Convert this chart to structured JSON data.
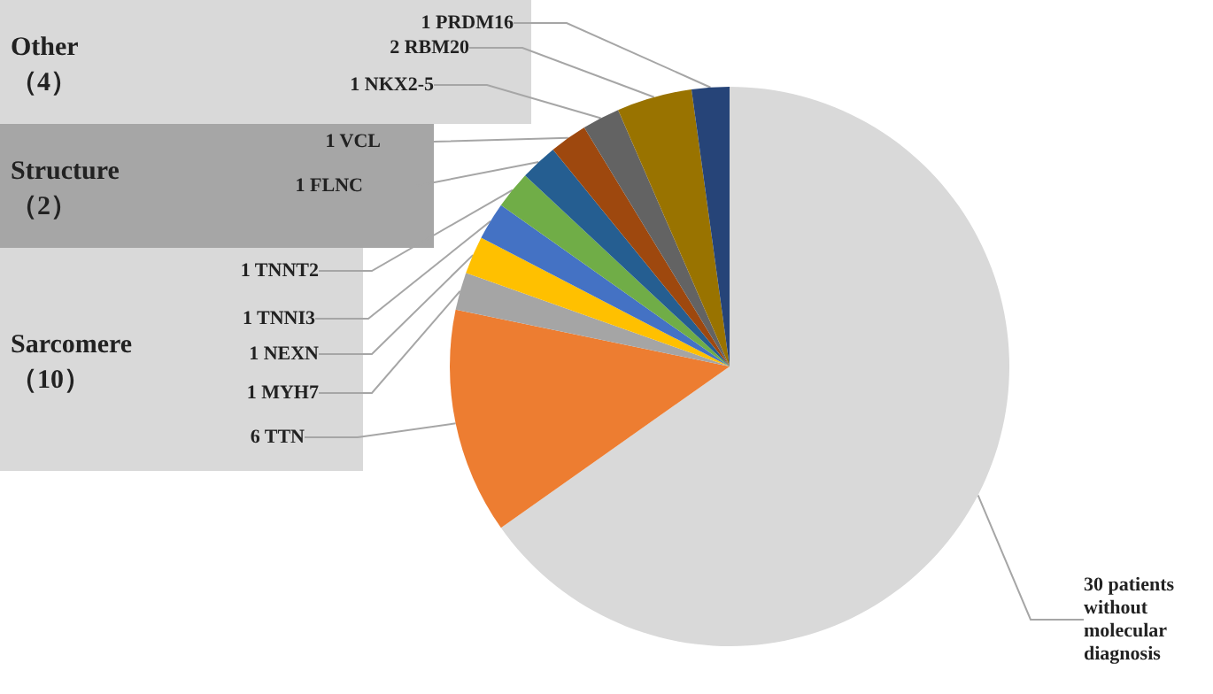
{
  "chart_data": {
    "type": "pie",
    "categories": [
      "patients without molecular diagnosis",
      "TTN",
      "MYH7",
      "NEXN",
      "TNNI3",
      "TNNT2",
      "FLNC",
      "VCL",
      "NKX2-5",
      "RBM20",
      "PRDM16"
    ],
    "values": [
      30,
      6,
      1,
      1,
      1,
      1,
      1,
      1,
      1,
      2,
      1
    ],
    "colors": [
      "#d9d9d9",
      "#ed7d31",
      "#a5a5a5",
      "#ffc000",
      "#4472c4",
      "#70ad47",
      "#255e91",
      "#9e480e",
      "#636363",
      "#997300",
      "#264478"
    ],
    "value_labels": [
      "30",
      "6",
      "1",
      "1",
      "1",
      "1",
      "1",
      "1",
      "1",
      "2",
      "1"
    ],
    "legend": false,
    "annotations": [
      "Other\n（4）",
      "Structure\n（2）",
      "Sarcomere\n（10）"
    ]
  }
}
